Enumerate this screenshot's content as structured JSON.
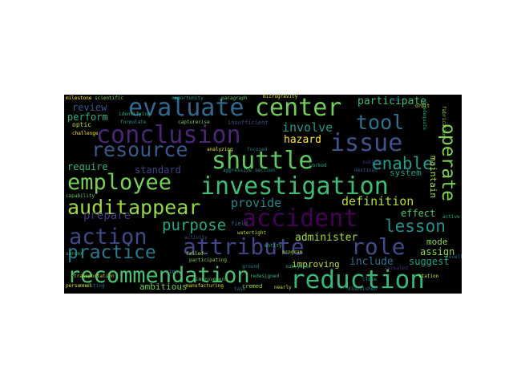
{
  "wordcloud": {
    "words": [
      {
        "text": "reduction",
        "color": "#35b779"
      },
      {
        "text": "investigation",
        "color": "#3fbc73"
      },
      {
        "text": "attribute",
        "color": "#404688"
      },
      {
        "text": "shuttle",
        "color": "#5ec962"
      },
      {
        "text": "conclusion",
        "color": "#482576"
      },
      {
        "text": "accident",
        "color": "#440154"
      },
      {
        "text": "recommendation",
        "color": "#4ac16d"
      },
      {
        "text": "employee",
        "color": "#75d054"
      },
      {
        "text": "evaluate",
        "color": "#31688e"
      },
      {
        "text": "center",
        "color": "#6ece58"
      },
      {
        "text": "action",
        "color": "#3e4989"
      },
      {
        "text": "issue",
        "color": "#3b528b"
      },
      {
        "text": "resource",
        "color": "#38598c"
      },
      {
        "text": "practice",
        "color": "#2a788e"
      },
      {
        "text": "appear",
        "color": "#90d743"
      },
      {
        "text": "role",
        "color": "#3e4a89"
      },
      {
        "text": "tool",
        "color": "#2c728e"
      },
      {
        "text": "audit",
        "color": "#9fda3a"
      },
      {
        "text": "operate",
        "color": "#7ad151"
      },
      {
        "text": "enable",
        "color": "#1f9e89"
      },
      {
        "text": "lesson",
        "color": "#21918c"
      },
      {
        "text": "purpose",
        "color": "#22a884"
      },
      {
        "text": "definition",
        "color": "#b5de2b"
      },
      {
        "text": "administer",
        "color": "#a2da37"
      },
      {
        "text": "provide",
        "color": "#25848e"
      },
      {
        "text": "involve",
        "color": "#1f968b"
      },
      {
        "text": "prepare",
        "color": "#443983"
      },
      {
        "text": "participate",
        "color": "#3dbc74"
      },
      {
        "text": "hazard",
        "color": "#fde725"
      },
      {
        "text": "include",
        "color": "#2d708e"
      },
      {
        "text": "require",
        "color": "#2fb47c"
      },
      {
        "text": "standard",
        "color": "#414487"
      },
      {
        "text": "review",
        "color": "#3a548c"
      },
      {
        "text": "perform",
        "color": "#2db27d"
      },
      {
        "text": "effect",
        "color": "#52c569"
      },
      {
        "text": "assign",
        "color": "#93d741"
      },
      {
        "text": "suggest",
        "color": "#20a386"
      },
      {
        "text": "mode",
        "color": "#90d743"
      },
      {
        "text": "system",
        "color": "#1fa188"
      },
      {
        "text": "maintain",
        "color": "#a5db36"
      },
      {
        "text": "improving",
        "color": "#c2df23"
      },
      {
        "text": "ambitious",
        "color": "#6ccd5a"
      },
      {
        "text": "optic",
        "color": "#b8de29"
      },
      {
        "text": "milestone",
        "color": "#fde725"
      },
      {
        "text": "scientific",
        "color": "#7fd34e"
      },
      {
        "text": "paragraph",
        "color": "#5ac864"
      },
      {
        "text": "microgravity",
        "color": "#dde318"
      },
      {
        "text": "cremed",
        "color": "#a0da39"
      },
      {
        "text": "analyzing",
        "color": "#e5e419"
      },
      {
        "text": "insufficient",
        "color": "#3e4c8a"
      },
      {
        "text": "capturerise",
        "color": "#7fd34e"
      },
      {
        "text": "formulate",
        "color": "#1f988b"
      },
      {
        "text": "aggressive section",
        "color": "#20928c"
      },
      {
        "text": "focused",
        "color": "#2a788e"
      },
      {
        "text": "participating",
        "color": "#8bd646"
      },
      {
        "text": "transportation",
        "color": "#b2dd2d"
      },
      {
        "text": "manufacturing",
        "color": "#d8e219"
      },
      {
        "text": "assisting",
        "color": "#2e6f8e"
      },
      {
        "text": "redesigned",
        "color": "#37b878"
      },
      {
        "text": "revealed",
        "color": "#482878"
      },
      {
        "text": "capability",
        "color": "#5cc863"
      },
      {
        "text": "watertight",
        "color": "#b5de2b"
      },
      {
        "text": "challenge",
        "color": "#fde725"
      },
      {
        "text": "field",
        "color": "#31688e"
      },
      {
        "text": "nine",
        "color": "#2c728e"
      },
      {
        "text": "close",
        "color": "#1fa088"
      },
      {
        "text": "station",
        "color": "#cae11f"
      },
      {
        "text": "inadequate",
        "color": "#1fa187"
      },
      {
        "text": "diminished",
        "color": "#2a788e"
      },
      {
        "text": "destined",
        "color": "#3b528b"
      },
      {
        "text": "program",
        "color": "#aadc32"
      },
      {
        "text": "subsystem",
        "color": "#22a785"
      },
      {
        "text": "ground",
        "color": "#26828e"
      },
      {
        "text": "entity",
        "color": "#31b57b"
      },
      {
        "text": "task",
        "color": "#2b758e"
      },
      {
        "text": "improvement",
        "color": "#56c667"
      },
      {
        "text": "activity",
        "color": "#3b528b"
      },
      {
        "text": "failed",
        "color": "#a0da39"
      },
      {
        "text": "opportunity",
        "color": "#1fa088"
      },
      {
        "text": "motor",
        "color": "#38598c"
      },
      {
        "text": "orbit",
        "color": "#dde318"
      },
      {
        "text": "subject",
        "color": "#46327e"
      },
      {
        "text": "worked",
        "color": "#25ac82"
      },
      {
        "text": "identifying",
        "color": "#2fb47c"
      },
      {
        "text": "personnel",
        "color": "#e5e419"
      },
      {
        "text": "sensor",
        "color": "#35b779"
      },
      {
        "text": "excellent",
        "color": "#2c728e"
      },
      {
        "text": "fabrication",
        "color": "#93d741"
      },
      {
        "text": "active",
        "color": "#29af7f"
      },
      {
        "text": "nearly",
        "color": "#c8e020"
      }
    ]
  }
}
